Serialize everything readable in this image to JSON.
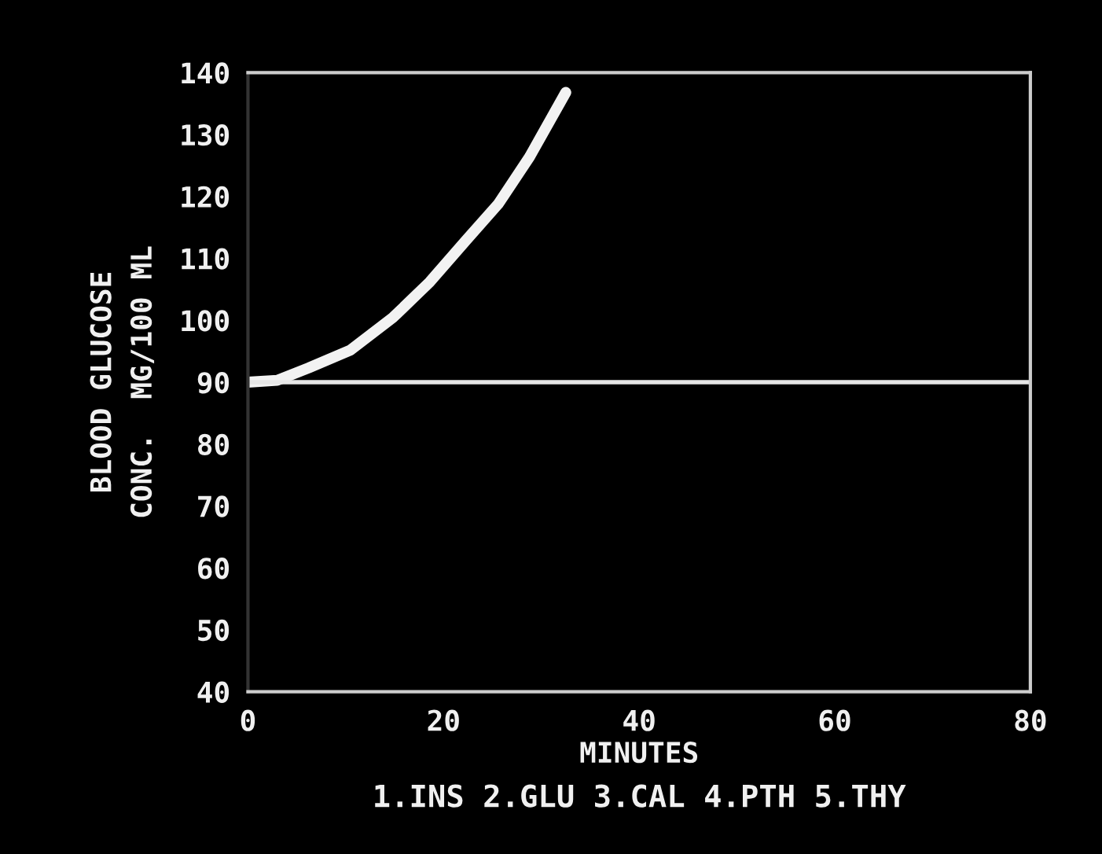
{
  "chart_data": {
    "type": "line",
    "xlabel": "MINUTES",
    "ylabel": "BLOOD GLUCOSE\nCONC.  MG/100 ML",
    "annotations": [
      "1.INS 2.GLU 3.CAL 4.PTH 5.THY"
    ],
    "series": [
      {
        "color": "#f2f2f2",
        "x": [
          0,
          3,
          6.2,
          10.5,
          14.8,
          18.6,
          22.3,
          25.6,
          28.8,
          32.5
        ],
        "values": [
          90,
          90.3,
          92.3,
          95.2,
          100.4,
          106.2,
          112.9,
          118.8,
          126.4,
          136.8
        ]
      }
    ],
    "xlim": [
      0,
      80
    ],
    "xticks": [
      0,
      20,
      40,
      60,
      80
    ],
    "ylim": [
      40,
      140
    ],
    "yticks": [
      40,
      50,
      60,
      70,
      80,
      90,
      100,
      110,
      120,
      130,
      140
    ],
    "ref_lines": [
      {
        "axis": "y",
        "value": 90,
        "color": "#e6e6e6"
      }
    ],
    "grid": false,
    "legend": false,
    "marker": "none",
    "line_style": "solid"
  }
}
